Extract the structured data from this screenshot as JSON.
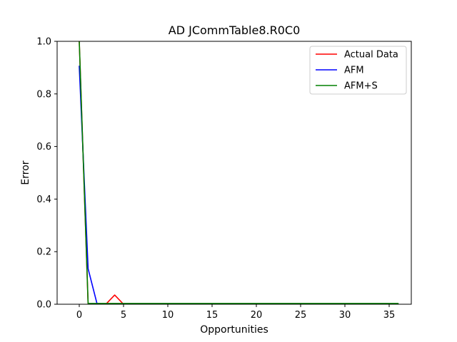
{
  "chart_data": {
    "type": "line",
    "title": "AD JCommTable8.R0C0",
    "xlabel": "Opportunities",
    "ylabel": "Error",
    "xlim": [
      -2.5,
      37.5
    ],
    "ylim": [
      0,
      1.0
    ],
    "xticks": [
      0,
      5,
      10,
      15,
      20,
      25,
      30,
      35
    ],
    "yticks": [
      0.0,
      0.2,
      0.4,
      0.6,
      0.8,
      1.0
    ],
    "xtick_labels": [
      "0",
      "5",
      "10",
      "15",
      "20",
      "25",
      "30",
      "35"
    ],
    "ytick_labels": [
      "0.0",
      "0.2",
      "0.4",
      "0.6",
      "0.8",
      "1.0"
    ],
    "grid": false,
    "legend_position": "top-right",
    "series": [
      {
        "name": "Actual Data",
        "color": "#ff0000",
        "x": [
          0,
          1,
          2,
          3,
          4,
          5,
          6,
          7,
          8,
          9,
          10,
          11,
          12,
          13,
          14,
          15,
          16,
          17,
          18,
          19,
          20,
          21,
          22,
          23,
          24,
          25,
          26,
          27,
          28,
          29,
          30,
          31,
          32,
          33,
          34,
          35,
          36
        ],
        "y": [
          1.0,
          0.0,
          0.0,
          0.0,
          0.035,
          0.0,
          0.0,
          0.0,
          0.0,
          0.0,
          0.0,
          0.0,
          0.0,
          0.0,
          0.0,
          0.0,
          0.0,
          0.0,
          0.0,
          0.0,
          0.0,
          0.0,
          0.0,
          0.0,
          0.0,
          0.0,
          0.0,
          0.0,
          0.0,
          0.0,
          0.0,
          0.0,
          0.0,
          0.0,
          0.0,
          0.0,
          0.0
        ]
      },
      {
        "name": "AFM",
        "color": "#0000ff",
        "x": [
          0,
          1,
          2,
          3,
          4,
          5,
          6,
          7,
          8,
          9,
          10,
          11,
          12,
          13,
          14,
          15,
          16,
          17,
          18,
          19,
          20,
          21,
          22,
          23,
          24,
          25,
          26,
          27,
          28,
          29,
          30,
          31,
          32,
          33,
          34,
          35,
          36
        ],
        "y": [
          0.905,
          0.135,
          0.003,
          0.001,
          0.0,
          0.0,
          0.0,
          0.0,
          0.0,
          0.0,
          0.0,
          0.0,
          0.0,
          0.0,
          0.0,
          0.0,
          0.0,
          0.0,
          0.0,
          0.0,
          0.0,
          0.0,
          0.0,
          0.0,
          0.0,
          0.0,
          0.0,
          0.0,
          0.0,
          0.0,
          0.0,
          0.0,
          0.0,
          0.0,
          0.0,
          0.0,
          0.0
        ]
      },
      {
        "name": "AFM+S",
        "color": "#008000",
        "x": [
          0,
          1,
          2,
          3,
          4,
          5,
          6,
          7,
          8,
          9,
          10,
          11,
          12,
          13,
          14,
          15,
          16,
          17,
          18,
          19,
          20,
          21,
          22,
          23,
          24,
          25,
          26,
          27,
          28,
          29,
          30,
          31,
          32,
          33,
          34,
          35,
          36
        ],
        "y": [
          1.0,
          0.003,
          0.003,
          0.003,
          0.003,
          0.003,
          0.003,
          0.003,
          0.003,
          0.003,
          0.003,
          0.003,
          0.003,
          0.003,
          0.003,
          0.003,
          0.003,
          0.003,
          0.003,
          0.003,
          0.003,
          0.003,
          0.003,
          0.003,
          0.003,
          0.003,
          0.003,
          0.003,
          0.003,
          0.003,
          0.003,
          0.003,
          0.003,
          0.003,
          0.003,
          0.003,
          0.003
        ]
      }
    ]
  }
}
